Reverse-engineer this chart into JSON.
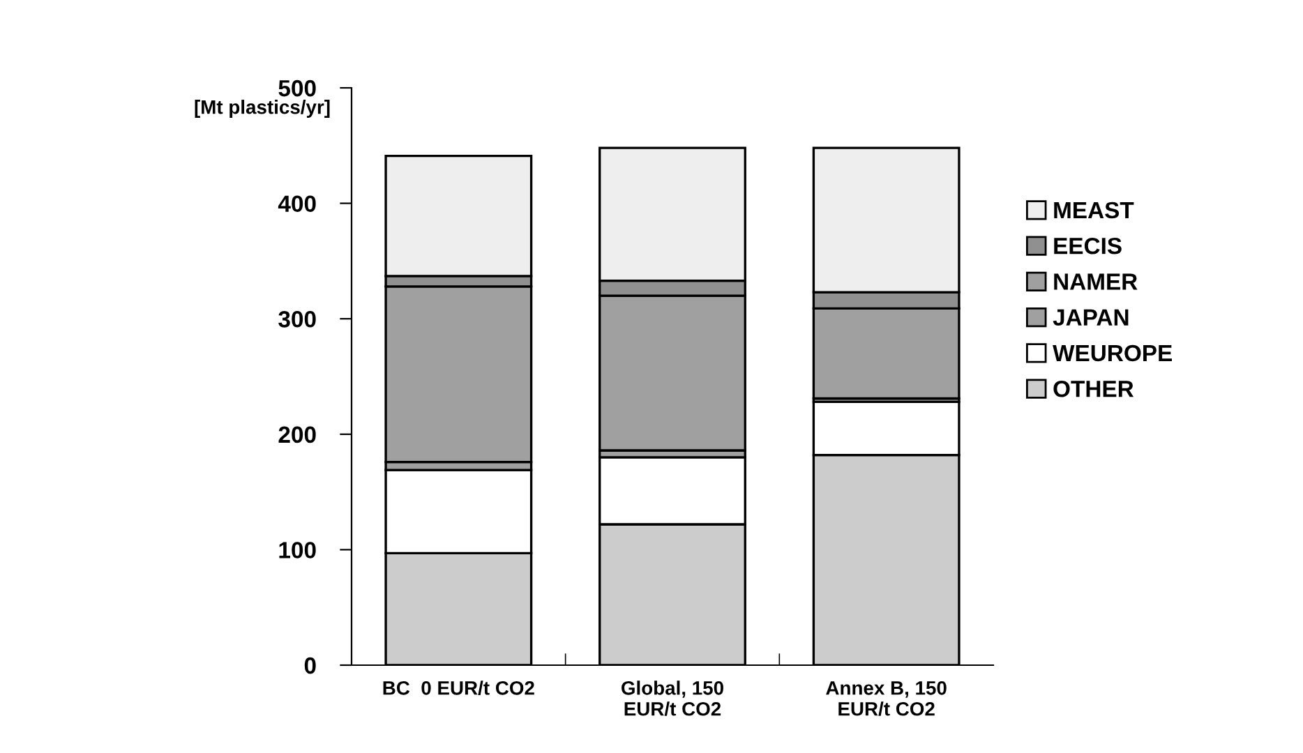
{
  "chart_data": {
    "type": "bar",
    "stacked": true,
    "ylabel": "[Mt plastics/yr]",
    "categories": [
      "BC  0 EUR/t CO2",
      "Global, 150\nEUR/t CO2",
      "Annex B, 150\nEUR/t CO2"
    ],
    "series": [
      {
        "name": "OTHER",
        "color": "#cccccc",
        "values": [
          97,
          122,
          182
        ]
      },
      {
        "name": "WEUROPE",
        "color": "#ffffff",
        "values": [
          72,
          58,
          46
        ]
      },
      {
        "name": "JAPAN",
        "color": "#a0a0a0",
        "values": [
          7,
          6,
          3
        ]
      },
      {
        "name": "NAMER",
        "color": "#a0a0a0",
        "values": [
          152,
          134,
          78
        ]
      },
      {
        "name": "EECIS",
        "color": "#909090",
        "values": [
          9,
          13,
          14
        ]
      },
      {
        "name": "MEAST",
        "color": "#eeeeee",
        "values": [
          104,
          115,
          125
        ]
      }
    ],
    "ylim": [
      0,
      500
    ],
    "yticks": [
      0,
      100,
      200,
      300,
      400,
      500
    ],
    "grid": false,
    "legend": "right"
  }
}
